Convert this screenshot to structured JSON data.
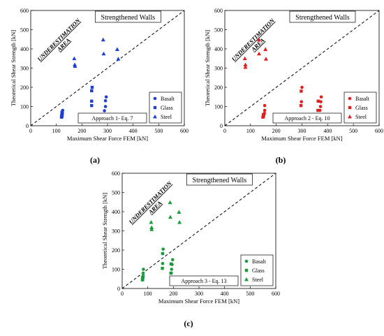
{
  "chart_data": [
    {
      "type": "scatter",
      "panel_label": "(a)",
      "title": "Strengthened Walls",
      "xlabel": "Maximum Shear Force FEM [kN]",
      "ylabel": "Theoretical Shear Strength [kN]",
      "xlim": [
        0,
        600
      ],
      "ylim": [
        0,
        600
      ],
      "xticks": [
        "0",
        "100",
        "200",
        "300",
        "400",
        "500",
        "600"
      ],
      "yticks": [
        "0",
        "100",
        "200",
        "300",
        "400",
        "500",
        "600"
      ],
      "annotation": [
        "UNDERESTIMATION",
        "AREA"
      ],
      "approach_label": "Approach 1- Eq. 7",
      "color": "#1f3fd0",
      "legend_position": "bottom-right",
      "diagonal": [
        [
          0,
          0
        ],
        [
          600,
          600
        ]
      ],
      "series": [
        {
          "name": "Basalt",
          "marker": "circle",
          "points": [
            [
              122,
              45
            ],
            [
              123,
              55
            ],
            [
              124,
              65
            ],
            [
              125,
              80
            ],
            [
              288,
              78
            ],
            [
              292,
              100
            ],
            [
              292,
              130
            ],
            [
              295,
              150
            ]
          ]
        },
        {
          "name": "Glass",
          "marker": "square",
          "points": [
            [
              120,
              45
            ],
            [
              121,
              55
            ],
            [
              122,
              70
            ],
            [
              238,
              105
            ],
            [
              238,
              128
            ],
            [
              238,
              182
            ],
            [
              240,
              200
            ]
          ]
        },
        {
          "name": "Steel",
          "marker": "triangle",
          "points": [
            [
              170,
              350
            ],
            [
              172,
              318
            ],
            [
              173,
              310
            ],
            [
              283,
              448
            ],
            [
              285,
              375
            ],
            [
              338,
              398
            ],
            [
              342,
              348
            ]
          ]
        }
      ]
    },
    {
      "type": "scatter",
      "panel_label": "(b)",
      "title": "Strengthened Walls",
      "xlabel": "Maximum Shear Force FEM [kN]",
      "ylabel": "Theoretical Shear Strength [kN]",
      "xlim": [
        0,
        600
      ],
      "ylim": [
        0,
        600
      ],
      "xticks": [
        "0",
        "100",
        "200",
        "300",
        "400",
        "500",
        "600"
      ],
      "yticks": [
        "0",
        "100",
        "200",
        "300",
        "400",
        "500",
        "600"
      ],
      "annotation": [
        "UNDERESTIMATION",
        "AREA"
      ],
      "approach_label": "Approach 2 - Eq. 10",
      "color": "#e02020",
      "legend_position": "bottom-right",
      "diagonal": [
        [
          0,
          0
        ],
        [
          600,
          600
        ]
      ],
      "series": [
        {
          "name": "Basalt",
          "marker": "circle",
          "points": [
            [
              150,
              45
            ],
            [
              152,
              55
            ],
            [
              154,
              65
            ],
            [
              155,
              80
            ],
            [
              155,
              105
            ],
            [
              298,
              125
            ],
            [
              300,
              200
            ],
            [
              370,
              80
            ],
            [
              372,
              100
            ],
            [
              373,
              125
            ],
            [
              375,
              150
            ]
          ]
        },
        {
          "name": "Glass",
          "marker": "square",
          "points": [
            [
              148,
              45
            ],
            [
              150,
              58
            ],
            [
              296,
              105
            ],
            [
              297,
              180
            ],
            [
              362,
              80
            ],
            [
              363,
              128
            ]
          ]
        },
        {
          "name": "Steel",
          "marker": "triangle",
          "points": [
            [
              78,
              350
            ],
            [
              80,
              318
            ],
            [
              80,
              305
            ],
            [
              133,
              448
            ],
            [
              133,
              375
            ],
            [
              158,
              398
            ],
            [
              160,
              348
            ]
          ]
        }
      ]
    },
    {
      "type": "scatter",
      "panel_label": "(c)",
      "title": "Strengthened Walls",
      "xlabel": "Maximum Shear Force FEM [kN]",
      "ylabel": "Theoretical Shear Strength [kN]",
      "xlim": [
        0,
        600
      ],
      "ylim": [
        0,
        600
      ],
      "xticks": [
        "0",
        "100",
        "200",
        "300",
        "400",
        "500",
        "600"
      ],
      "yticks": [
        "0",
        "100",
        "200",
        "300",
        "400",
        "500",
        "600"
      ],
      "annotation": [
        "UNDERESTIMATION",
        "AREA"
      ],
      "approach_label": "Approach 3 - Eq. 13",
      "color": "#1a9a3a",
      "legend_position": "bottom-right",
      "diagonal": [
        [
          0,
          0
        ],
        [
          600,
          600
        ]
      ],
      "series": [
        {
          "name": "Basalt",
          "marker": "circle",
          "points": [
            [
              80,
              45
            ],
            [
              81,
              55
            ],
            [
              82,
              65
            ],
            [
              82,
              80
            ],
            [
              83,
              100
            ],
            [
              158,
              130
            ],
            [
              160,
              205
            ],
            [
              192,
              80
            ],
            [
              193,
              100
            ],
            [
              195,
              125
            ],
            [
              197,
              150
            ]
          ]
        },
        {
          "name": "Glass",
          "marker": "square",
          "points": [
            [
              79,
              45
            ],
            [
              80,
              58
            ],
            [
              157,
              105
            ],
            [
              158,
              182
            ],
            [
              190,
              80
            ],
            [
              191,
              128
            ]
          ]
        },
        {
          "name": "Steel",
          "marker": "triangle",
          "points": [
            [
              113,
              345
            ],
            [
              115,
              318
            ],
            [
              115,
              308
            ],
            [
              187,
              448
            ],
            [
              188,
              372
            ],
            [
              222,
              398
            ],
            [
              224,
              345
            ]
          ]
        }
      ]
    }
  ]
}
